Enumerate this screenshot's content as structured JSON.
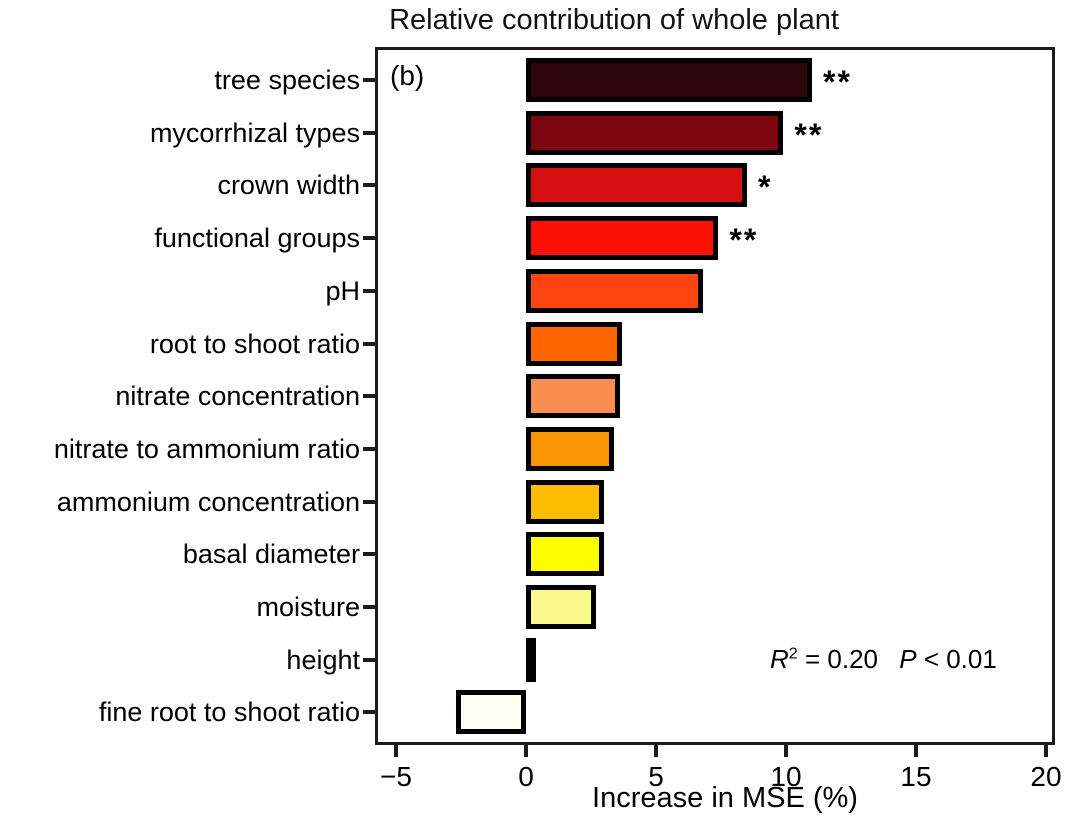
{
  "chart_data": {
    "type": "bar",
    "orientation": "horizontal",
    "title": "Relative contribution of whole plant",
    "panel_label": "(b)",
    "xlabel": "Increase in MSE (%)",
    "ylabel": "",
    "xlim": [
      -5.8,
      20.35
    ],
    "grid": false,
    "x_ticks": [
      {
        "value": -5,
        "label": "−5"
      },
      {
        "value": 0,
        "label": "0"
      },
      {
        "value": 5,
        "label": "5"
      },
      {
        "value": 10,
        "label": "10"
      },
      {
        "value": 15,
        "label": "15"
      },
      {
        "value": 20,
        "label": "20"
      }
    ],
    "bars": [
      {
        "label": "tree species",
        "value": 11.0,
        "color": "#2d060b",
        "significance": "**"
      },
      {
        "label": "mycorrhizal types",
        "value": 9.9,
        "color": "#7e0610",
        "significance": "**"
      },
      {
        "label": "crown width",
        "value": 8.5,
        "color": "#d60f10",
        "significance": "*"
      },
      {
        "label": "functional groups",
        "value": 7.4,
        "color": "#fe1105",
        "significance": "**"
      },
      {
        "label": "pH",
        "value": 6.8,
        "color": "#fe4410",
        "significance": ""
      },
      {
        "label": "root to shoot ratio",
        "value": 3.7,
        "color": "#fe6502",
        "significance": ""
      },
      {
        "label": "nitrate concentration",
        "value": 3.6,
        "color": "#f98e52",
        "significance": ""
      },
      {
        "label": "nitrate to ammonium ratio",
        "value": 3.4,
        "color": "#fb9504",
        "significance": ""
      },
      {
        "label": "ammonium concentration",
        "value": 3.0,
        "color": "#fbbc02",
        "significance": ""
      },
      {
        "label": "basal diameter",
        "value": 3.0,
        "color": "#fdfd00",
        "significance": ""
      },
      {
        "label": "moisture",
        "value": 2.7,
        "color": "#f9f98c",
        "significance": ""
      },
      {
        "label": "height",
        "value": 0.2,
        "color": "#fdfdea",
        "significance": ""
      },
      {
        "label": "fine root to shoot ratio",
        "value": -2.7,
        "color": "#fdfdf0",
        "significance": ""
      }
    ],
    "annotation": {
      "r_symbol": "R",
      "r_exponent": "2",
      "r_value": "= 0.20",
      "p_symbol": "P",
      "p_value": "< 0.01"
    },
    "stats": {
      "r_squared": 0.2,
      "p": "< 0.01"
    },
    "colors": {
      "bar_outline": "#000000",
      "axis": "#1c1c1c",
      "text": "#000000",
      "background": "#ffffff"
    }
  }
}
